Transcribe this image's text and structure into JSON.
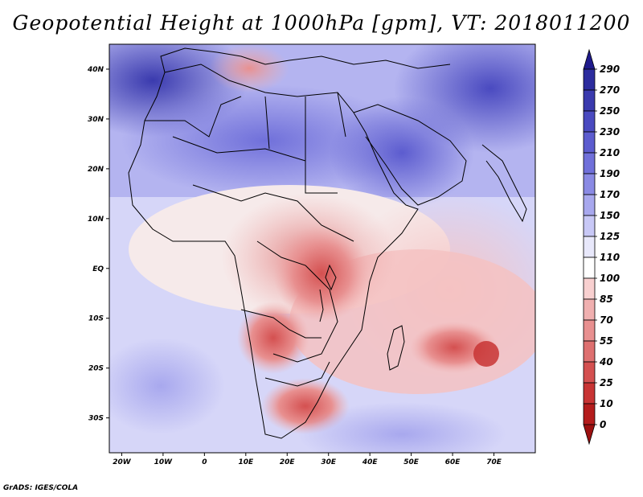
{
  "title": "Geopotential Height at 1000hPa [gpm], VT: 2018011200",
  "credit": "GrADS: IGES/COLA",
  "map": {
    "lon_range": [
      -23,
      80
    ],
    "lat_range": [
      -37,
      45
    ],
    "lat_labels": [
      {
        "value": 40,
        "text": "40N"
      },
      {
        "value": 30,
        "text": "30N"
      },
      {
        "value": 20,
        "text": "20N"
      },
      {
        "value": 10,
        "text": "10N"
      },
      {
        "value": 0,
        "text": "EQ"
      },
      {
        "value": -10,
        "text": "10S"
      },
      {
        "value": -20,
        "text": "20S"
      },
      {
        "value": -30,
        "text": "30S"
      }
    ],
    "lon_labels": [
      {
        "value": -20,
        "text": "20W"
      },
      {
        "value": -10,
        "text": "10W"
      },
      {
        "value": 0,
        "text": "0"
      },
      {
        "value": 10,
        "text": "10E"
      },
      {
        "value": 20,
        "text": "20E"
      },
      {
        "value": 30,
        "text": "30E"
      },
      {
        "value": 40,
        "text": "40E"
      },
      {
        "value": 50,
        "text": "50E"
      },
      {
        "value": 60,
        "text": "60E"
      },
      {
        "value": 70,
        "text": "70E"
      }
    ]
  },
  "colorbar": {
    "levels": [
      "290",
      "270",
      "250",
      "230",
      "210",
      "190",
      "170",
      "150",
      "125",
      "110",
      "100",
      "85",
      "70",
      "55",
      "40",
      "25",
      "10",
      "0"
    ],
    "colors": [
      "#1f1a8c",
      "#2c2c9e",
      "#3a3aae",
      "#4a4ac0",
      "#5c5ccf",
      "#7070da",
      "#8a8ae4",
      "#a8a8ee",
      "#c8c8f6",
      "#e8e8fb",
      "#ffffff",
      "#f8d0d0",
      "#f0b0b0",
      "#e89090",
      "#de7070",
      "#d45050",
      "#c83434",
      "#b41c1c",
      "#9c1010"
    ]
  },
  "regions": [
    {
      "label": "north-atlantic-high",
      "lon": -15,
      "lat": 36,
      "value": 250
    },
    {
      "label": "sahara",
      "lon": 10,
      "lat": 25,
      "value": 190
    },
    {
      "label": "arabia",
      "lon": 45,
      "lat": 25,
      "value": 210
    },
    {
      "label": "iran-high",
      "lon": 62,
      "lat": 33,
      "value": 230
    },
    {
      "label": "mediterranean-low",
      "lon": 12,
      "lat": 38,
      "value": 85
    },
    {
      "label": "central-africa-low",
      "lon": 25,
      "lat": 5,
      "value": 70
    },
    {
      "label": "great-lakes-low",
      "lon": 30,
      "lat": -2,
      "value": 55
    },
    {
      "label": "kalahari-low",
      "lon": 20,
      "lat": -17,
      "value": 55
    },
    {
      "label": "south-africa-low",
      "lon": 27,
      "lat": -30,
      "value": 55
    },
    {
      "label": "indian-ocean-low",
      "lon": 62,
      "lat": -17,
      "value": 55
    },
    {
      "label": "indian-ocean-low-center",
      "lon": 69,
      "lat": -18,
      "value": 40
    },
    {
      "label": "south-atlantic-high",
      "lon": -5,
      "lat": -25,
      "value": 150
    },
    {
      "label": "south-indian-high",
      "lon": 55,
      "lat": -33,
      "value": 150
    }
  ]
}
